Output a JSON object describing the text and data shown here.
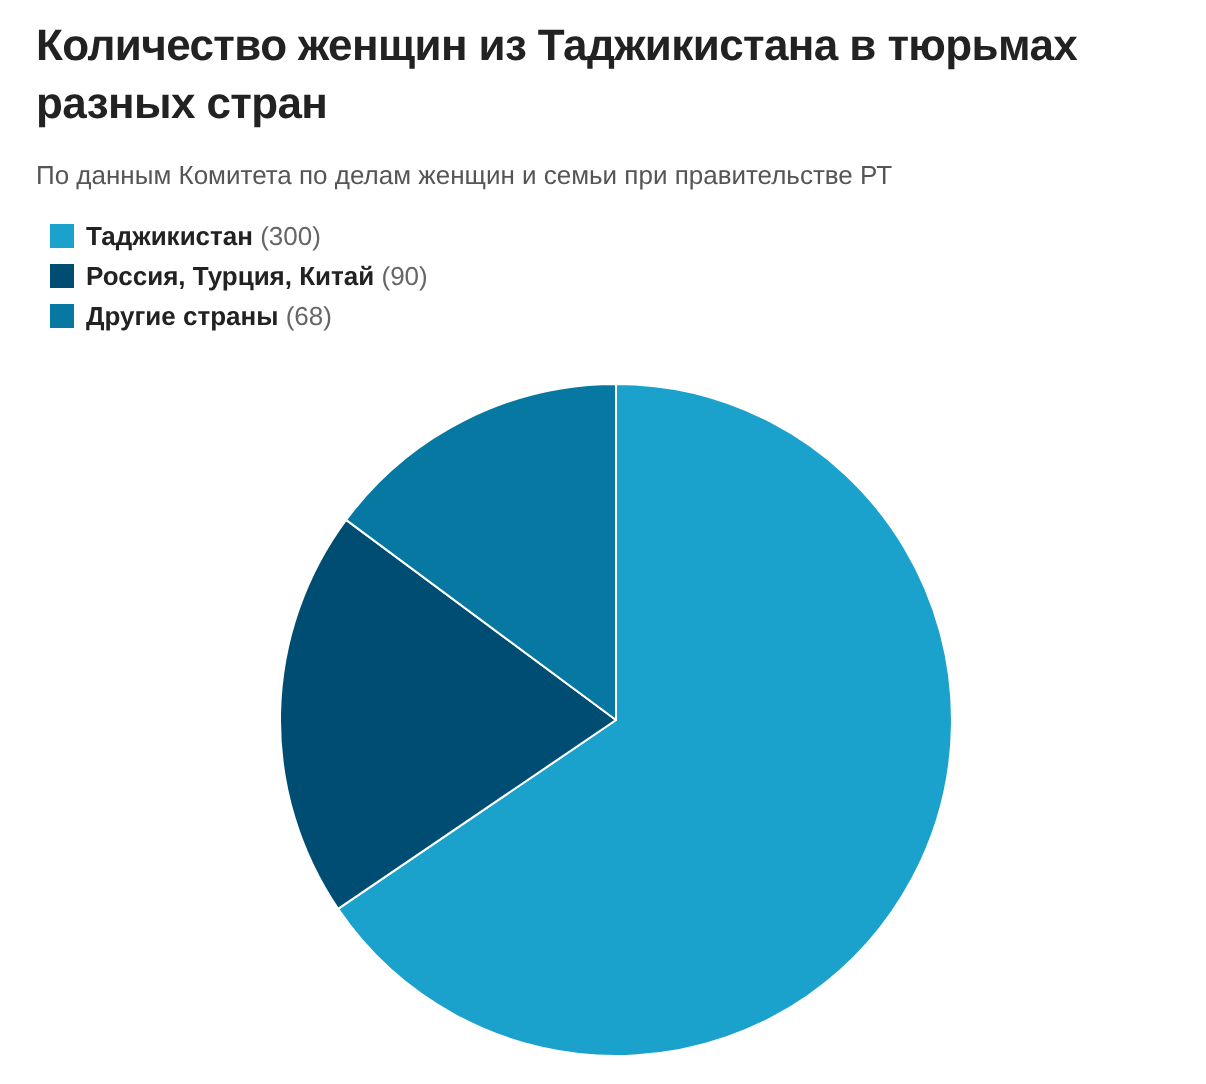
{
  "chart_data": {
    "type": "pie",
    "title": "Количество женщин из Таджикистана в тюрьмах разных стран",
    "subtitle": "По данным Комитета по делам женщин и семьи при правительстве РТ",
    "categories": [
      "Таджикистан",
      "Россия, Турция, Китай",
      "Другие страны"
    ],
    "values": [
      300,
      90,
      68
    ],
    "colors": [
      "#1aa1cc",
      "#004d73",
      "#0778a1"
    ],
    "legend": "top left",
    "value_labels": [
      "(300)",
      "(90)",
      "(68)"
    ]
  }
}
